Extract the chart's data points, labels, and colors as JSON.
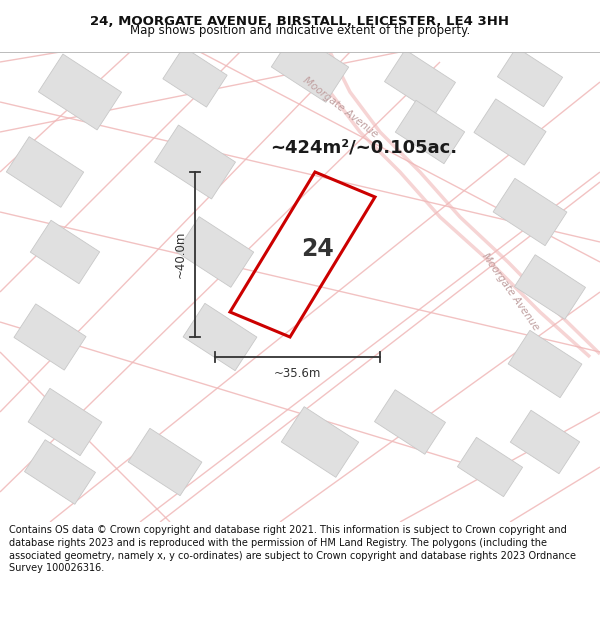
{
  "title_line1": "24, MOORGATE AVENUE, BIRSTALL, LEICESTER, LE4 3HH",
  "title_line2": "Map shows position and indicative extent of the property.",
  "area_text": "~424m²/~0.105ac.",
  "label_number": "24",
  "dim_horizontal": "~35.6m",
  "dim_vertical": "~40.0m",
  "road_label1": "Moorgate Avenue",
  "road_label2": "Moorgate Avenue",
  "footer_text": "Contains OS data © Crown copyright and database right 2021. This information is subject to Crown copyright and database rights 2023 and is reproduced with the permission of HM Land Registry. The polygons (including the associated geometry, namely x, y co-ordinates) are subject to Crown copyright and database rights 2023 Ordnance Survey 100026316.",
  "map_bg": "#ffffff",
  "plot_color": "#cc0000",
  "road_line_color": "#f0b8b8",
  "road_line_lw": 1.0,
  "building_color": "#e0e0e0",
  "building_edge": "#c8c8c8",
  "text_color": "#111111",
  "dim_color": "#333333",
  "road_label_color": "#c0a0a0"
}
